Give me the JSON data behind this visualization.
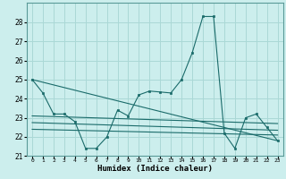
{
  "title": "",
  "xlabel": "Humidex (Indice chaleur)",
  "bg_color": "#cceeed",
  "grid_color": "#aad8d6",
  "line_color": "#1a6b6a",
  "xlim": [
    -0.5,
    23.5
  ],
  "ylim": [
    21,
    29
  ],
  "yticks": [
    21,
    22,
    23,
    24,
    25,
    26,
    27,
    28
  ],
  "xtick_labels": [
    "0",
    "1",
    "2",
    "3",
    "4",
    "5",
    "6",
    "7",
    "8",
    "9",
    "10",
    "11",
    "12",
    "13",
    "14",
    "15",
    "16",
    "17",
    "18",
    "19",
    "20",
    "21",
    "22",
    "23"
  ],
  "series1": [
    25.0,
    24.3,
    23.2,
    23.2,
    22.8,
    21.4,
    21.4,
    22.0,
    23.4,
    23.1,
    24.2,
    24.4,
    24.35,
    24.3,
    25.0,
    26.4,
    28.3,
    28.3,
    22.2,
    21.4,
    23.0,
    23.2,
    22.5,
    21.8
  ],
  "series2_x": [
    0,
    23
  ],
  "series2_y": [
    25.0,
    21.8
  ],
  "series3_x": [
    0,
    23
  ],
  "series3_y": [
    23.1,
    22.7
  ],
  "series4_x": [
    0,
    23
  ],
  "series4_y": [
    22.75,
    22.35
  ],
  "series5_x": [
    0,
    23
  ],
  "series5_y": [
    22.4,
    22.1
  ]
}
